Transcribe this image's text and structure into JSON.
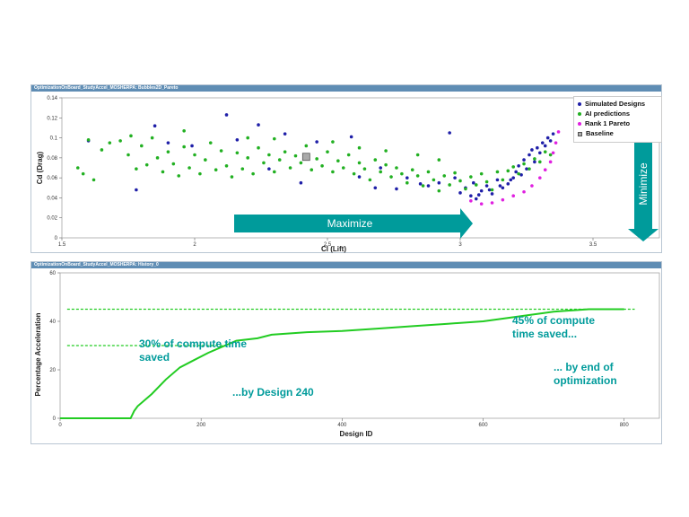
{
  "panel1": {
    "title": "OptimizationOnBoard_StudyAccel_MOSHERPA: Bubbles2D_Pareto",
    "maximize_label": "Maximize",
    "minimize_label": "Minimize"
  },
  "panel2": {
    "title": "OptimizationOnBoard_StudyAccel_MOSHERPA: History_0"
  },
  "legend": {
    "items": [
      "Simulated Designs",
      "AI predictions",
      "Rank 1 Pareto",
      "Baseline"
    ]
  },
  "annotations": {
    "left_line1": "30% of compute time",
    "left_line2": "saved",
    "by_design": "...by Design 240",
    "right_line1": "45% of compute",
    "right_line2": "time saved...",
    "end_line1": "... by end of",
    "end_line2": "optimization"
  },
  "colors": {
    "simulated": "#1f1fa8",
    "ai": "#22b022",
    "pareto": "#e020e0",
    "teal": "#009b9b",
    "history_line": "#22cc22",
    "titlebar": "#5f8db4"
  },
  "chart_data": [
    {
      "type": "scatter",
      "title": "",
      "xlabel": "Cl (Lift)",
      "ylabel": "Cd (Drag)",
      "xlim": [
        1.5,
        3.75
      ],
      "ylim": [
        0,
        0.14
      ],
      "xticks": [
        "1.5",
        "2",
        "2.5",
        "3",
        "3.5"
      ],
      "yticks": [
        "0",
        "0.02",
        "0.04",
        "0.06",
        "0.08",
        "0.1",
        "0.12",
        "0.14"
      ],
      "legend_position": "top-right",
      "series": [
        {
          "name": "Simulated Designs",
          "points": [
            [
              1.6,
              0.097
            ],
            [
              1.78,
              0.048
            ],
            [
              1.85,
              0.112
            ],
            [
              1.9,
              0.095
            ],
            [
              1.99,
              0.092
            ],
            [
              2.12,
              0.123
            ],
            [
              2.16,
              0.098
            ],
            [
              2.24,
              0.113
            ],
            [
              2.28,
              0.069
            ],
            [
              2.34,
              0.104
            ],
            [
              2.46,
              0.096
            ],
            [
              2.59,
              0.101
            ],
            [
              2.62,
              0.061
            ],
            [
              2.68,
              0.05
            ],
            [
              2.76,
              0.049
            ],
            [
              2.85,
              0.054
            ],
            [
              2.88,
              0.052
            ],
            [
              2.92,
              0.055
            ],
            [
              2.96,
              0.105
            ],
            [
              2.98,
              0.06
            ],
            [
              3.0,
              0.045
            ],
            [
              3.02,
              0.05
            ],
            [
              3.04,
              0.042
            ],
            [
              3.05,
              0.055
            ],
            [
              3.06,
              0.039
            ],
            [
              3.08,
              0.047
            ],
            [
              3.1,
              0.052
            ],
            [
              3.12,
              0.044
            ],
            [
              3.14,
              0.058
            ],
            [
              3.16,
              0.05
            ],
            [
              3.18,
              0.054
            ],
            [
              3.2,
              0.06
            ],
            [
              3.21,
              0.066
            ],
            [
              3.22,
              0.072
            ],
            [
              3.24,
              0.078
            ],
            [
              3.25,
              0.069
            ],
            [
              3.26,
              0.083
            ],
            [
              3.27,
              0.088
            ],
            [
              3.28,
              0.076
            ],
            [
              3.29,
              0.09
            ],
            [
              3.3,
              0.085
            ],
            [
              3.31,
              0.095
            ],
            [
              3.32,
              0.092
            ],
            [
              3.33,
              0.1
            ],
            [
              3.34,
              0.097
            ],
            [
              3.35,
              0.104
            ],
            [
              3.23,
              0.063
            ],
            [
              3.19,
              0.058
            ],
            [
              3.15,
              0.052
            ],
            [
              3.11,
              0.048
            ],
            [
              3.07,
              0.043
            ],
            [
              2.8,
              0.06
            ],
            [
              2.7,
              0.07
            ],
            [
              2.4,
              0.055
            ]
          ]
        },
        {
          "name": "AI predictions",
          "points": [
            [
              1.56,
              0.07
            ],
            [
              1.58,
              0.064
            ],
            [
              1.62,
              0.058
            ],
            [
              1.65,
              0.088
            ],
            [
              1.68,
              0.095
            ],
            [
              1.72,
              0.097
            ],
            [
              1.75,
              0.083
            ],
            [
              1.78,
              0.069
            ],
            [
              1.8,
              0.092
            ],
            [
              1.82,
              0.073
            ],
            [
              1.84,
              0.1
            ],
            [
              1.86,
              0.08
            ],
            [
              1.88,
              0.066
            ],
            [
              1.9,
              0.086
            ],
            [
              1.92,
              0.074
            ],
            [
              1.94,
              0.062
            ],
            [
              1.96,
              0.091
            ],
            [
              1.98,
              0.07
            ],
            [
              2.0,
              0.083
            ],
            [
              2.02,
              0.064
            ],
            [
              2.04,
              0.078
            ],
            [
              2.06,
              0.095
            ],
            [
              2.08,
              0.068
            ],
            [
              2.1,
              0.087
            ],
            [
              2.12,
              0.072
            ],
            [
              2.14,
              0.061
            ],
            [
              2.16,
              0.085
            ],
            [
              2.18,
              0.069
            ],
            [
              2.2,
              0.08
            ],
            [
              2.22,
              0.064
            ],
            [
              2.24,
              0.09
            ],
            [
              2.26,
              0.075
            ],
            [
              2.28,
              0.083
            ],
            [
              2.3,
              0.066
            ],
            [
              2.32,
              0.078
            ],
            [
              2.34,
              0.086
            ],
            [
              2.36,
              0.07
            ],
            [
              2.38,
              0.082
            ],
            [
              2.4,
              0.075
            ],
            [
              2.42,
              0.092
            ],
            [
              2.44,
              0.068
            ],
            [
              2.46,
              0.079
            ],
            [
              2.48,
              0.072
            ],
            [
              2.5,
              0.086
            ],
            [
              2.52,
              0.066
            ],
            [
              2.54,
              0.077
            ],
            [
              2.56,
              0.07
            ],
            [
              2.58,
              0.083
            ],
            [
              2.6,
              0.064
            ],
            [
              2.62,
              0.075
            ],
            [
              2.64,
              0.069
            ],
            [
              2.66,
              0.058
            ],
            [
              2.68,
              0.078
            ],
            [
              2.7,
              0.066
            ],
            [
              2.72,
              0.073
            ],
            [
              2.74,
              0.061
            ],
            [
              2.76,
              0.07
            ],
            [
              2.78,
              0.064
            ],
            [
              2.8,
              0.055
            ],
            [
              2.82,
              0.068
            ],
            [
              2.84,
              0.062
            ],
            [
              2.86,
              0.052
            ],
            [
              2.88,
              0.066
            ],
            [
              2.9,
              0.058
            ],
            [
              2.92,
              0.047
            ],
            [
              2.94,
              0.062
            ],
            [
              2.96,
              0.053
            ],
            [
              2.98,
              0.065
            ],
            [
              3.0,
              0.057
            ],
            [
              3.02,
              0.049
            ],
            [
              3.04,
              0.061
            ],
            [
              3.06,
              0.053
            ],
            [
              3.08,
              0.064
            ],
            [
              3.1,
              0.056
            ],
            [
              3.12,
              0.048
            ],
            [
              3.14,
              0.066
            ],
            [
              3.16,
              0.058
            ],
            [
              3.18,
              0.067
            ],
            [
              3.2,
              0.071
            ],
            [
              3.22,
              0.064
            ],
            [
              3.24,
              0.074
            ],
            [
              3.26,
              0.069
            ],
            [
              3.28,
              0.079
            ],
            [
              3.3,
              0.076
            ],
            [
              3.32,
              0.086
            ],
            [
              3.34,
              0.083
            ],
            [
              1.6,
              0.098
            ],
            [
              1.76,
              0.102
            ],
            [
              1.96,
              0.107
            ],
            [
              2.2,
              0.1
            ],
            [
              2.3,
              0.099
            ],
            [
              2.52,
              0.096
            ],
            [
              2.62,
              0.09
            ],
            [
              2.72,
              0.087
            ],
            [
              2.84,
              0.083
            ],
            [
              2.92,
              0.078
            ]
          ]
        },
        {
          "name": "Rank 1 Pareto",
          "points": [
            [
              3.04,
              0.037
            ],
            [
              3.08,
              0.034
            ],
            [
              3.12,
              0.035
            ],
            [
              3.16,
              0.038
            ],
            [
              3.2,
              0.042
            ],
            [
              3.24,
              0.046
            ],
            [
              3.27,
              0.052
            ],
            [
              3.3,
              0.06
            ],
            [
              3.32,
              0.068
            ],
            [
              3.34,
              0.076
            ],
            [
              3.35,
              0.085
            ],
            [
              3.36,
              0.095
            ],
            [
              3.37,
              0.106
            ]
          ]
        },
        {
          "name": "Baseline",
          "points": [
            [
              2.42,
              0.081
            ]
          ]
        }
      ]
    },
    {
      "type": "line",
      "title": "",
      "xlabel": "Design ID",
      "ylabel": "Percentage Acceleration",
      "xlim": [
        0,
        850
      ],
      "ylim": [
        0,
        60
      ],
      "xticks": [
        "0",
        "200",
        "400",
        "600",
        "800"
      ],
      "yticks": [
        "0",
        "20",
        "40",
        "60"
      ],
      "series": [
        {
          "name": "",
          "x": [
            0,
            50,
            100,
            105,
            110,
            130,
            150,
            170,
            190,
            210,
            230,
            250,
            280,
            300,
            350,
            400,
            450,
            500,
            550,
            600,
            650,
            700,
            750,
            800
          ],
          "y": [
            0,
            0,
            0,
            3,
            5,
            10,
            16,
            21,
            24,
            27,
            29.5,
            32,
            33,
            34.5,
            35.5,
            36,
            37,
            38,
            39,
            40,
            42,
            44,
            45,
            45
          ]
        }
      ],
      "reference_lines": [
        30,
        45
      ]
    }
  ]
}
